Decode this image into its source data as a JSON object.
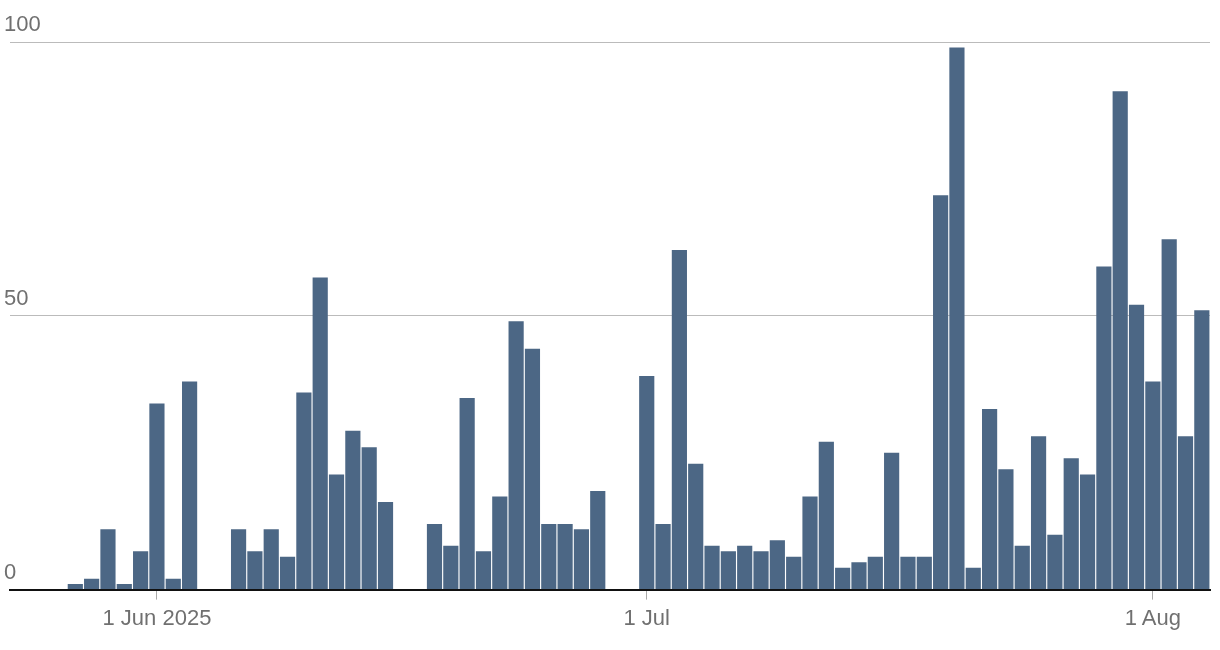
{
  "chart_data": {
    "type": "bar",
    "x": [
      "2025-05-27",
      "2025-05-28",
      "2025-05-29",
      "2025-05-30",
      "2025-05-31",
      "2025-06-01",
      "2025-06-02",
      "2025-06-03",
      "2025-06-04",
      "2025-06-05",
      "2025-06-06",
      "2025-06-07",
      "2025-06-08",
      "2025-06-09",
      "2025-06-10",
      "2025-06-11",
      "2025-06-12",
      "2025-06-13",
      "2025-06-14",
      "2025-06-15",
      "2025-06-16",
      "2025-06-17",
      "2025-06-18",
      "2025-06-19",
      "2025-06-20",
      "2025-06-21",
      "2025-06-22",
      "2025-06-23",
      "2025-06-24",
      "2025-06-25",
      "2025-06-26",
      "2025-06-27",
      "2025-06-28",
      "2025-06-29",
      "2025-06-30",
      "2025-07-01",
      "2025-07-02",
      "2025-07-03",
      "2025-07-04",
      "2025-07-05",
      "2025-07-06",
      "2025-07-07",
      "2025-07-08",
      "2025-07-09",
      "2025-07-10",
      "2025-07-11",
      "2025-07-12",
      "2025-07-13",
      "2025-07-14",
      "2025-07-15",
      "2025-07-16",
      "2025-07-17",
      "2025-07-18",
      "2025-07-19",
      "2025-07-20",
      "2025-07-21",
      "2025-07-22",
      "2025-07-23",
      "2025-07-24",
      "2025-07-25",
      "2025-07-26",
      "2025-07-27",
      "2025-07-28",
      "2025-07-29",
      "2025-07-30",
      "2025-07-31",
      "2025-08-01",
      "2025-08-02",
      "2025-08-03",
      "2025-08-04"
    ],
    "values": [
      1,
      2,
      11,
      1,
      7,
      34,
      2,
      38,
      null,
      null,
      11,
      7,
      11,
      6,
      36,
      57,
      21,
      29,
      26,
      16,
      null,
      null,
      12,
      8,
      35,
      7,
      17,
      49,
      44,
      12,
      12,
      11,
      18,
      null,
      null,
      39,
      12,
      62,
      23,
      8,
      7,
      8,
      7,
      9,
      6,
      17,
      27,
      4,
      5,
      6,
      25,
      6,
      6,
      72,
      99,
      4,
      33,
      22,
      8,
      28,
      10,
      24,
      21,
      59,
      91,
      52,
      38,
      64,
      28,
      51
    ],
    "color": "#4c6785",
    "xlim": [
      "2025-05-23",
      "2025-08-04T12:00"
    ],
    "xticks": [
      {
        "value": "2025-06-01",
        "label": "1 Jun 2025"
      },
      {
        "value": "2025-07-01",
        "label": "1 Jul"
      },
      {
        "value": "2025-08-01",
        "label": "1 Aug"
      }
    ],
    "ylim": [
      0,
      100
    ],
    "yticks": [
      0,
      50,
      100
    ],
    "grid": "y"
  }
}
